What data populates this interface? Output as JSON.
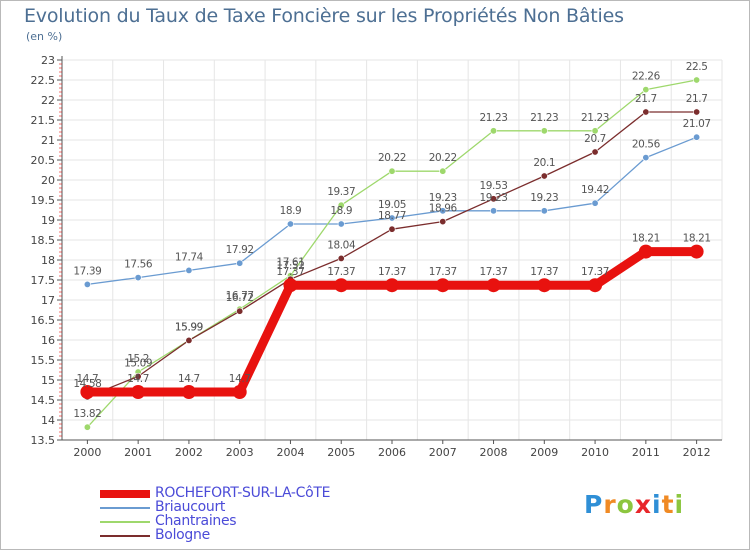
{
  "title": "Evolution du Taux de Taxe Foncière sur les Propriétés Non Bâties",
  "subtitle": "(en %)",
  "logo": {
    "letters": [
      "P",
      "r",
      "o",
      "x",
      "i",
      "t",
      "i"
    ],
    "colors": [
      "#2f8fd6",
      "#f08a24",
      "#8cc63f",
      "#e8262a",
      "#2f8fd6",
      "#f08a24",
      "#8cc63f"
    ]
  },
  "legend": [
    {
      "label": "ROCHEFORT-SUR-LA-CôTE"
    },
    {
      "label": "Briaucourt"
    },
    {
      "label": "Chantraines"
    },
    {
      "label": "Bologne"
    }
  ],
  "chart_data": {
    "type": "line",
    "title": "Evolution du Taux de Taxe Foncière sur les Propriétés Non Bâties",
    "ylabel": "(en %)",
    "x": [
      "2000",
      "2001",
      "2002",
      "2003",
      "2004",
      "2005",
      "2006",
      "2007",
      "2008",
      "2009",
      "2010",
      "2011",
      "2012"
    ],
    "ylim": [
      13.5,
      23
    ],
    "yticks": [
      "13.5",
      "14",
      "14.5",
      "15",
      "15.5",
      "16",
      "16.5",
      "17",
      "17.5",
      "18",
      "18.5",
      "19",
      "19.5",
      "20",
      "20.5",
      "21",
      "21.5",
      "22",
      "22.5",
      "23"
    ],
    "grid": true,
    "legend_position": "bottom-left",
    "series": [
      {
        "name": "ROCHEFORT-SUR-LA-CôTE",
        "color": "#e8120f",
        "values": [
          14.7,
          14.7,
          14.7,
          14.7,
          17.37,
          17.37,
          17.37,
          17.37,
          17.37,
          17.37,
          17.37,
          18.21,
          18.21
        ],
        "labels": [
          "14.7",
          "14.7",
          "14.7",
          "14.7",
          "17.37",
          "17.37",
          "17.37",
          "17.37",
          "17.37",
          "17.37",
          "17.37",
          "18.21",
          "18.21"
        ]
      },
      {
        "name": "Briaucourt",
        "color": "#6a9bd1",
        "values": [
          17.39,
          17.56,
          17.74,
          17.92,
          18.9,
          18.9,
          19.05,
          19.23,
          19.23,
          19.23,
          19.42,
          20.56,
          21.07
        ],
        "labels": [
          "17.39",
          "17.56",
          "17.74",
          "17.92",
          "18.9",
          "18.9",
          "19.05",
          "19.23",
          "19.23",
          "19.23",
          "19.42",
          "20.56",
          "21.07"
        ]
      },
      {
        "name": "Chantraines",
        "color": "#9ed86c",
        "values": [
          13.82,
          15.2,
          15.99,
          16.77,
          17.61,
          19.37,
          20.22,
          20.22,
          21.23,
          21.23,
          21.23,
          22.26,
          22.5
        ],
        "labels": [
          "13.82",
          "15.2",
          "15.99",
          "16.77",
          "17.61",
          "19.37",
          "20.22",
          "20.22",
          "21.23",
          "21.23",
          "21.23",
          "22.26",
          "22.5"
        ]
      },
      {
        "name": "Bologne",
        "color": "#7b2d2d",
        "values": [
          14.58,
          15.09,
          15.99,
          16.72,
          17.52,
          18.04,
          18.77,
          18.96,
          19.53,
          20.1,
          20.7,
          21.7,
          21.7
        ],
        "labels": [
          "14.58",
          "15.09",
          "15.99",
          "16.72",
          "17.52",
          "18.04",
          "18.77",
          "18.96",
          "19.53",
          "20.1",
          "20.7",
          "21.7",
          "21.7"
        ]
      }
    ]
  }
}
